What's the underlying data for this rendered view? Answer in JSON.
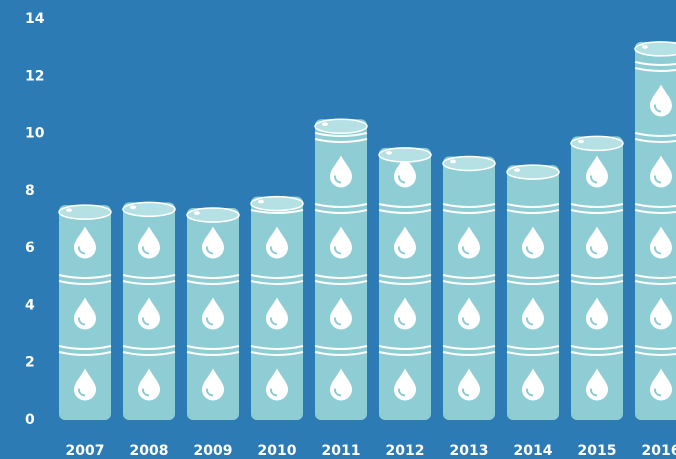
{
  "chart_data": {
    "type": "barrel",
    "categories": [
      "2007",
      "2008",
      "2009",
      "2010",
      "2011",
      "2012",
      "2013",
      "2014",
      "2015",
      "2016"
    ],
    "values": [
      7.5,
      7.6,
      7.4,
      7.8,
      10.5,
      9.5,
      9.2,
      8.9,
      9.9,
      13.2
    ],
    "color": "#8ecdd3",
    "ylim": [
      0,
      14
    ],
    "yticks": [
      0,
      2,
      4,
      6,
      8,
      10,
      12,
      14
    ],
    "grid": false
  }
}
